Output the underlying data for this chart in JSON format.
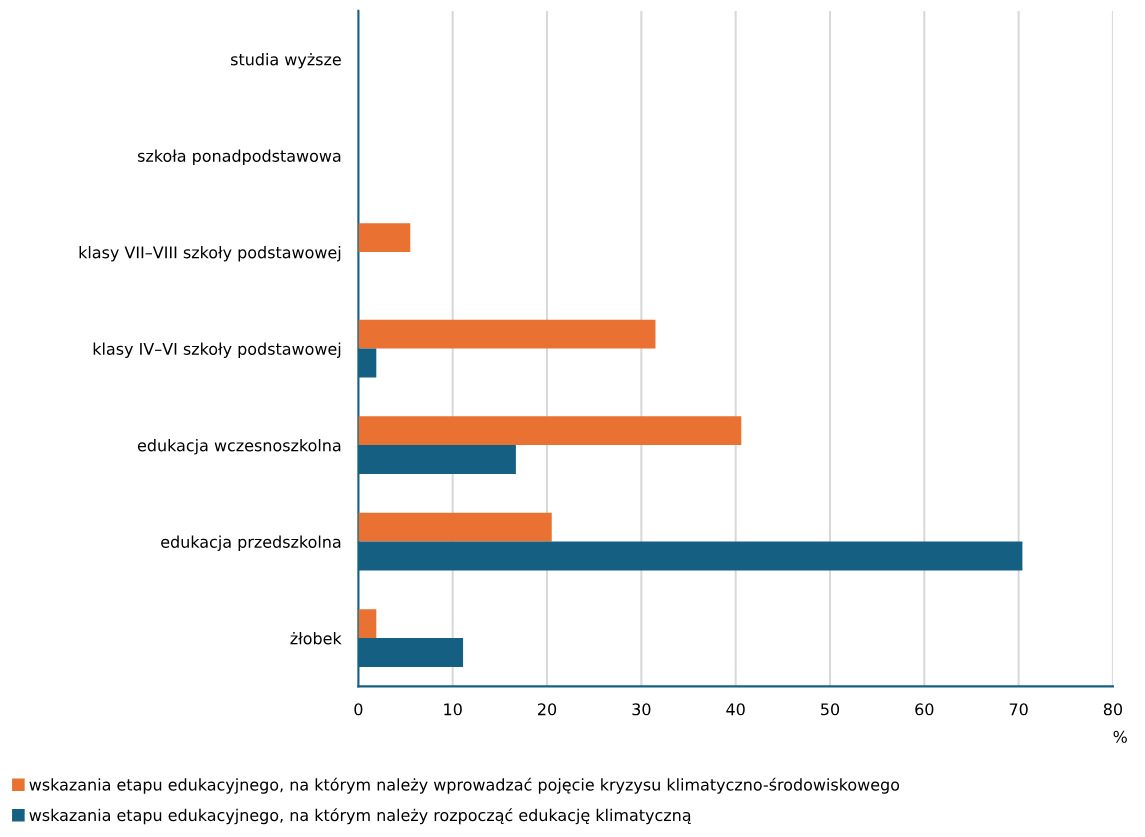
{
  "chart_data": {
    "type": "bar",
    "orientation": "horizontal",
    "categories": [
      "studia wyższe",
      "szkoła ponadpodstawowa",
      "klasy VII–VIII szkoły podstawowej",
      "klasy IV–VI szkoły podstawowej",
      "edukacja wczesnoszkolna",
      "edukacja przedszkolna",
      "żłobek"
    ],
    "series": [
      {
        "name": "wskazania etapu edukacyjnego, na którym należy wprowadzać pojęcie kryzysu klimatyczno-środowiskowego",
        "color": "#e97132",
        "values": [
          0,
          0,
          5.5,
          31.5,
          40.6,
          20.5,
          1.9
        ]
      },
      {
        "name": "wskazania etapu edukacyjnego, na którym należy rozpocząć edukację klimatyczną",
        "color": "#156082",
        "values": [
          0,
          0,
          0,
          1.9,
          16.7,
          70.4,
          11.1
        ]
      }
    ],
    "xlabel": "%",
    "xlim": [
      0,
      80
    ],
    "xticks": [
      0,
      10,
      20,
      30,
      40,
      50,
      60,
      70,
      80
    ],
    "grid": "x",
    "legend": "bottom"
  }
}
